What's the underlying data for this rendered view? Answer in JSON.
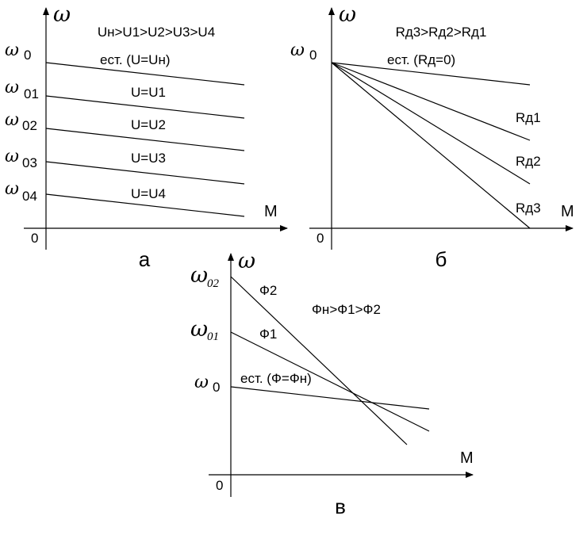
{
  "axis_symbol": "ω",
  "panel_a": {
    "caption": "а",
    "condition": "Uн>U1>U2>U3>U4",
    "x_label": "M",
    "origin": "0",
    "y_ticks": [
      "0",
      "01",
      "02",
      "03",
      "04"
    ],
    "lines": [
      "ест. (U=Uн)",
      "U=U1",
      "U=U2",
      "U=U3",
      "U=U4"
    ]
  },
  "panel_b": {
    "caption": "б",
    "condition": "Rд3>Rд2>Rд1",
    "x_label": "M",
    "origin": "0",
    "y_tick": "0",
    "lines": [
      "ест. (Rд=0)",
      "Rд1",
      "Rд2",
      "Rд3"
    ]
  },
  "panel_c": {
    "caption": "в",
    "condition": "Фн>Ф1>Ф2",
    "x_label": "M",
    "origin": "0",
    "y_ticks": [
      "02",
      "01",
      "0"
    ],
    "lines": [
      "Ф2",
      "Ф1",
      "ест. (Ф=Фн)"
    ]
  }
}
